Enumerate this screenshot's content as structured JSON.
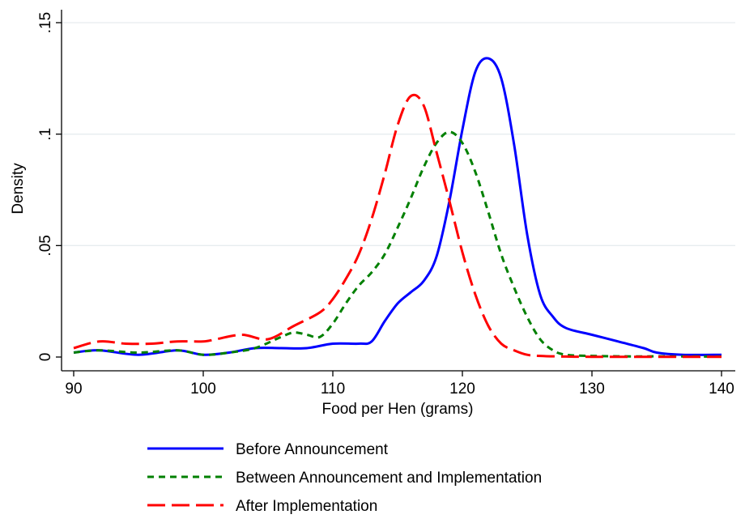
{
  "chart_data": {
    "type": "line",
    "title": "",
    "xlabel": "Food per Hen (grams)",
    "ylabel": "Density",
    "xlim": [
      90,
      140
    ],
    "ylim": [
      0,
      0.15
    ],
    "x_ticks": [
      90,
      100,
      110,
      120,
      130,
      140
    ],
    "x_tick_labels": [
      "90",
      "100",
      "110",
      "120",
      "130",
      "140"
    ],
    "y_ticks": [
      0,
      0.05,
      0.1,
      0.15
    ],
    "y_tick_labels": [
      "0",
      ".05",
      ".1",
      ".15"
    ],
    "grid": "horizontal",
    "legend_position": "bottom",
    "series": [
      {
        "name": "Before Announcement",
        "color": "#0000ff",
        "dash": "solid",
        "x": [
          90,
          92,
          95,
          98,
          100,
          102,
          104,
          106,
          108,
          110,
          112,
          113,
          114,
          115,
          116,
          117,
          118,
          119,
          120,
          121,
          122,
          123,
          124,
          125,
          126,
          127,
          128,
          130,
          132,
          134,
          135,
          137,
          140
        ],
        "y": [
          0.002,
          0.003,
          0.001,
          0.003,
          0.001,
          0.002,
          0.004,
          0.004,
          0.004,
          0.006,
          0.006,
          0.007,
          0.016,
          0.024,
          0.029,
          0.034,
          0.045,
          0.07,
          0.102,
          0.128,
          0.134,
          0.125,
          0.095,
          0.055,
          0.028,
          0.018,
          0.013,
          0.01,
          0.007,
          0.004,
          0.002,
          0.001,
          0.001
        ]
      },
      {
        "name": "Between Announcement and Implementation",
        "color": "#008000",
        "dash": "short",
        "x": [
          90,
          92,
          95,
          98,
          100,
          102,
          104,
          106,
          107,
          108,
          109,
          110,
          111,
          112,
          113,
          114,
          115,
          116,
          117,
          118,
          119,
          120,
          121,
          122,
          123,
          124,
          125,
          126,
          127,
          128,
          130,
          133,
          136,
          140
        ],
        "y": [
          0.002,
          0.003,
          0.002,
          0.003,
          0.001,
          0.002,
          0.004,
          0.009,
          0.011,
          0.01,
          0.009,
          0.015,
          0.024,
          0.032,
          0.038,
          0.046,
          0.058,
          0.071,
          0.085,
          0.096,
          0.101,
          0.096,
          0.083,
          0.065,
          0.046,
          0.031,
          0.018,
          0.008,
          0.003,
          0.001,
          0.0005,
          0.0003,
          0.0003,
          0.0002
        ]
      },
      {
        "name": "After Implementation",
        "color": "#ff0000",
        "dash": "long",
        "x": [
          90,
          92,
          94,
          96,
          98,
          100,
          101,
          103,
          105,
          107,
          109,
          110,
          111,
          112,
          113,
          114,
          115,
          116,
          117,
          118,
          119,
          120,
          121,
          122,
          123,
          124,
          125,
          126,
          128,
          130,
          133,
          136,
          140
        ],
        "y": [
          0.004,
          0.007,
          0.006,
          0.006,
          0.007,
          0.007,
          0.008,
          0.01,
          0.008,
          0.014,
          0.02,
          0.026,
          0.035,
          0.046,
          0.062,
          0.082,
          0.104,
          0.117,
          0.113,
          0.092,
          0.07,
          0.047,
          0.028,
          0.014,
          0.006,
          0.003,
          0.001,
          0.0005,
          0.0002,
          0.0001,
          0.0001,
          0.0001,
          0.0001
        ]
      }
    ]
  }
}
